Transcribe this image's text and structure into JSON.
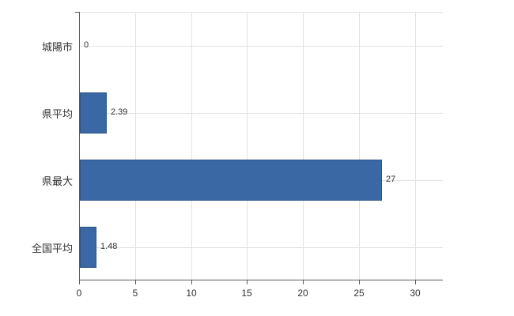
{
  "chart_data": {
    "type": "bar",
    "orientation": "horizontal",
    "title": "",
    "categories": [
      "城陽市",
      "県平均",
      "県最大",
      "全国平均"
    ],
    "values": [
      0,
      2.39,
      27,
      1.48
    ],
    "value_labels": [
      "0",
      "2.39",
      "27",
      "1.48"
    ],
    "x_ticks": [
      0,
      5,
      10,
      15,
      20,
      25,
      30
    ],
    "x_tick_labels": [
      "0",
      "5",
      "10",
      "15",
      "20",
      "25",
      "30"
    ],
    "xlim": [
      0,
      32.5
    ],
    "grid": true,
    "legend": "none",
    "bar_color": "#3a68a4",
    "bar_border_color": "#2e5485",
    "axis_color": "#595959",
    "grid_color": "#e2e2e2",
    "label_color": "#333333"
  }
}
